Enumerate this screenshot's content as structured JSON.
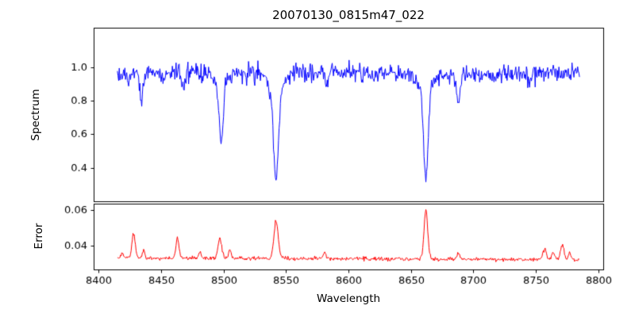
{
  "figure": {
    "title": "20070130_0815m47_022",
    "xlabel": "Wavelength",
    "background": "#ffffff",
    "spine_color": "#000000",
    "tick_color": "#000000"
  },
  "chart_data": [
    {
      "type": "line",
      "name": "spectrum",
      "title": "20070130_0815m47_022",
      "ylabel": "Spectrum",
      "color": "#0000ff",
      "x_range": [
        8415,
        8785
      ],
      "x_step": 0.5,
      "xlim": [
        8396,
        8804
      ],
      "ylim": [
        0.2,
        1.235
      ],
      "yticks": [
        0.4,
        0.6,
        0.8,
        1.0
      ],
      "ytick_labels": [
        "0.4",
        "0.6",
        "0.8",
        "1.0"
      ],
      "continuum": 0.965,
      "noise_sigma": 0.028,
      "absorption_lines": [
        {
          "center": 8424,
          "depth": 0.05,
          "sigma": 1.0
        },
        {
          "center": 8434,
          "depth": 0.17,
          "sigma": 1.3
        },
        {
          "center": 8452,
          "depth": 0.05,
          "sigma": 1.0
        },
        {
          "center": 8468,
          "depth": 0.1,
          "sigma": 1.2
        },
        {
          "center": 8498,
          "depth": 0.36,
          "sigma": 1.6
        },
        {
          "center": 8498,
          "depth": 0.07,
          "sigma": 5.0
        },
        {
          "center": 8542,
          "depth": 0.55,
          "sigma": 2.0
        },
        {
          "center": 8542,
          "depth": 0.09,
          "sigma": 7.0
        },
        {
          "center": 8583,
          "depth": 0.07,
          "sigma": 1.0
        },
        {
          "center": 8662,
          "depth": 0.55,
          "sigma": 1.8
        },
        {
          "center": 8662,
          "depth": 0.08,
          "sigma": 6.0
        },
        {
          "center": 8688,
          "depth": 0.19,
          "sigma": 1.3
        },
        {
          "center": 8745,
          "depth": 0.06,
          "sigma": 1.0
        }
      ]
    },
    {
      "type": "line",
      "name": "error",
      "ylabel": "Error",
      "color": "#ff0000",
      "x_range": [
        8415,
        8785
      ],
      "x_step": 0.5,
      "xlim": [
        8396,
        8804
      ],
      "ylim": [
        0.027,
        0.0635
      ],
      "yticks": [
        0.04,
        0.06
      ],
      "ytick_labels": [
        "0.04",
        "0.06"
      ],
      "xticks": [
        8400,
        8450,
        8500,
        8550,
        8600,
        8650,
        8700,
        8750,
        8800
      ],
      "xtick_labels": [
        "8400",
        "8450",
        "8500",
        "8550",
        "8600",
        "8650",
        "8700",
        "8750",
        "8800"
      ],
      "baseline": 0.0335,
      "baseline_slope": -3e-06,
      "noise_sigma": 0.0005,
      "peaks": [
        {
          "center": 8419,
          "height": 0.003,
          "sigma": 1.0
        },
        {
          "center": 8428,
          "height": 0.0135,
          "sigma": 1.3
        },
        {
          "center": 8436,
          "height": 0.004,
          "sigma": 1.0
        },
        {
          "center": 8463,
          "height": 0.0115,
          "sigma": 1.2
        },
        {
          "center": 8481,
          "height": 0.003,
          "sigma": 1.0
        },
        {
          "center": 8497,
          "height": 0.0115,
          "sigma": 1.5
        },
        {
          "center": 8505,
          "height": 0.005,
          "sigma": 1.0
        },
        {
          "center": 8542,
          "height": 0.0205,
          "sigma": 1.7
        },
        {
          "center": 8581,
          "height": 0.003,
          "sigma": 1.2
        },
        {
          "center": 8662,
          "height": 0.0275,
          "sigma": 1.5
        },
        {
          "center": 8688,
          "height": 0.0035,
          "sigma": 1.2
        },
        {
          "center": 8757,
          "height": 0.006,
          "sigma": 1.6
        },
        {
          "center": 8764,
          "height": 0.0045,
          "sigma": 1.2
        },
        {
          "center": 8771,
          "height": 0.0085,
          "sigma": 1.4
        },
        {
          "center": 8777,
          "height": 0.004,
          "sigma": 1.0
        }
      ]
    }
  ]
}
